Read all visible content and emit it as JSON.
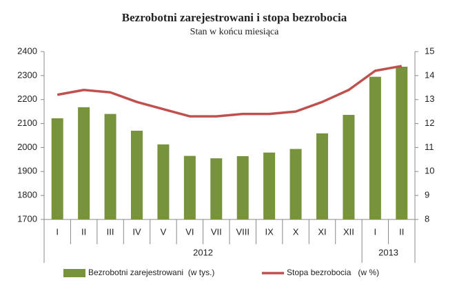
{
  "chart_data": {
    "type": "bar-line",
    "title": "Bezrobotni zarejestrowani i stopa bezrobocia",
    "subtitle": "Stan w końcu miesiąca",
    "groups": [
      {
        "label": "2012",
        "categories": [
          "I",
          "II",
          "III",
          "IV",
          "V",
          "VI",
          "VII",
          "VIII",
          "IX",
          "X",
          "XI",
          "XII"
        ]
      },
      {
        "label": "2013",
        "categories": [
          "I",
          "II"
        ]
      }
    ],
    "series": [
      {
        "name": "Bezrobotni zarejestrowani  (w tys.)",
        "type": "bar",
        "color": "#77933c",
        "values": [
          2122,
          2168,
          2140,
          2070,
          2013,
          1965,
          1955,
          1964,
          1979,
          1994,
          2059,
          2136,
          2295,
          2337
        ]
      },
      {
        "name": "Stopa bezrobocia   (w %)",
        "type": "line",
        "axis": "y2",
        "color": "#c0504d",
        "values": [
          13.2,
          13.4,
          13.3,
          12.9,
          12.6,
          12.3,
          12.3,
          12.4,
          12.4,
          12.5,
          12.9,
          13.4,
          14.2,
          14.4
        ]
      }
    ],
    "ylim": [
      1700,
      2400
    ],
    "yticks": [
      1700,
      1800,
      1900,
      2000,
      2100,
      2200,
      2300,
      2400
    ],
    "y2lim": [
      8,
      15
    ],
    "y2ticks": [
      8,
      9,
      10,
      11,
      12,
      13,
      14,
      15
    ],
    "grid": false
  }
}
